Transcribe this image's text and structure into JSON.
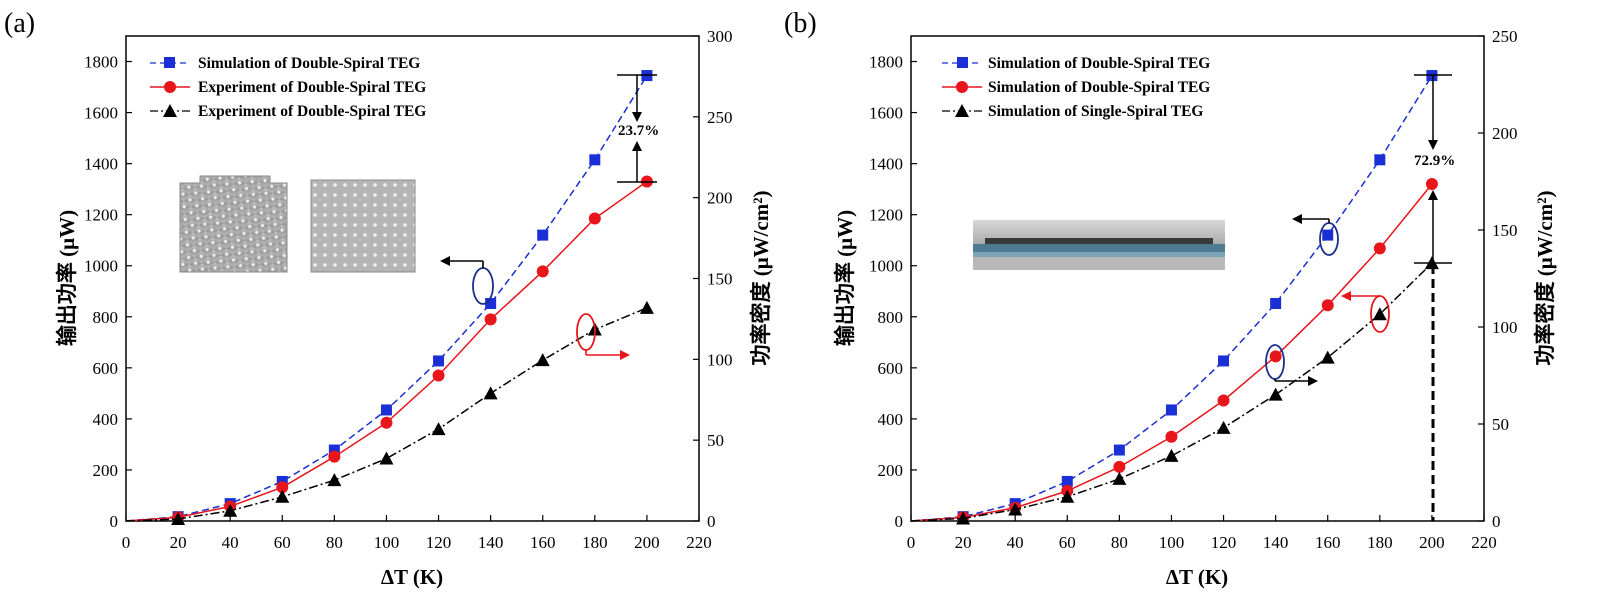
{
  "chart_data": [
    {
      "type": "line",
      "panel_label": "(a)",
      "xlabel": "ΔT (K)",
      "ylabel": "输出功率 (μW)",
      "y2label": "功率密度 (μW/cm²)",
      "xlim": [
        0,
        220
      ],
      "ylim": [
        0,
        1900
      ],
      "y2lim": [
        0,
        300
      ],
      "xticks": [
        0,
        20,
        40,
        60,
        80,
        100,
        120,
        140,
        160,
        180,
        200,
        220
      ],
      "yticks": [
        0,
        200,
        400,
        600,
        800,
        1000,
        1200,
        1400,
        1600,
        1800
      ],
      "y2ticks": [
        0,
        50,
        100,
        150,
        200,
        250,
        300
      ],
      "legend_position": "top-left",
      "x": [
        0,
        20,
        40,
        60,
        80,
        100,
        120,
        140,
        160,
        180,
        200
      ],
      "series": [
        {
          "name": "Simulation of Double-Spiral TEG",
          "color": "#1a2fd6",
          "marker": "square",
          "line": "dashed",
          "values": [
            0,
            17,
            68,
            155,
            278,
            435,
            627,
            852,
            1120,
            1415,
            1745
          ]
        },
        {
          "name": "Experiment of Double-Spiral TEG",
          "color": "#e8151b",
          "marker": "circle",
          "line": "solid",
          "values": [
            0,
            14,
            57,
            132,
            252,
            385,
            570,
            790,
            978,
            1185,
            1330
          ]
        },
        {
          "name": "Experiment of Double-Spiral TEG",
          "color": "#000000",
          "marker": "triangle",
          "line": "dashdot",
          "values": [
            0,
            8,
            40,
            95,
            160,
            245,
            360,
            500,
            630,
            750,
            835
          ]
        }
      ],
      "annotations": [
        {
          "text": "23.7%",
          "x": 200,
          "from": 1745,
          "to": 1330
        }
      ]
    },
    {
      "type": "line",
      "panel_label": "(b)",
      "xlabel": "ΔT (K)",
      "ylabel": "输出功率 (μW)",
      "y2label": "功率密度 (μW/cm²)",
      "xlim": [
        0,
        220
      ],
      "ylim": [
        0,
        1900
      ],
      "y2lim": [
        0,
        250
      ],
      "xticks": [
        0,
        20,
        40,
        60,
        80,
        100,
        120,
        140,
        160,
        180,
        200,
        220
      ],
      "yticks": [
        0,
        200,
        400,
        600,
        800,
        1000,
        1200,
        1400,
        1600,
        1800
      ],
      "y2ticks": [
        0,
        50,
        100,
        150,
        200,
        250
      ],
      "legend_position": "top-left",
      "x": [
        0,
        20,
        40,
        60,
        80,
        100,
        120,
        140,
        160,
        180,
        200
      ],
      "series": [
        {
          "name": "Simulation of Double-Spiral TEG",
          "color": "#1a2fd6",
          "marker": "square",
          "line": "dashed",
          "values": [
            0,
            17,
            68,
            155,
            278,
            435,
            627,
            852,
            1120,
            1415,
            1745
          ]
        },
        {
          "name": "Simulation of Double-Spiral TEG",
          "color": "#e8151b",
          "marker": "circle",
          "line": "solid",
          "values": [
            0,
            14,
            52,
            118,
            212,
            330,
            472,
            645,
            845,
            1068,
            1320
          ]
        },
        {
          "name": "Simulation of Single-Spiral TEG",
          "color": "#000000",
          "marker": "triangle",
          "line": "dashdot",
          "values": [
            0,
            10,
            45,
            95,
            165,
            255,
            365,
            495,
            640,
            810,
            1010
          ]
        }
      ],
      "annotations": [
        {
          "text": "72.9%",
          "x": 200,
          "from": 1745,
          "to": 1010
        }
      ]
    }
  ]
}
